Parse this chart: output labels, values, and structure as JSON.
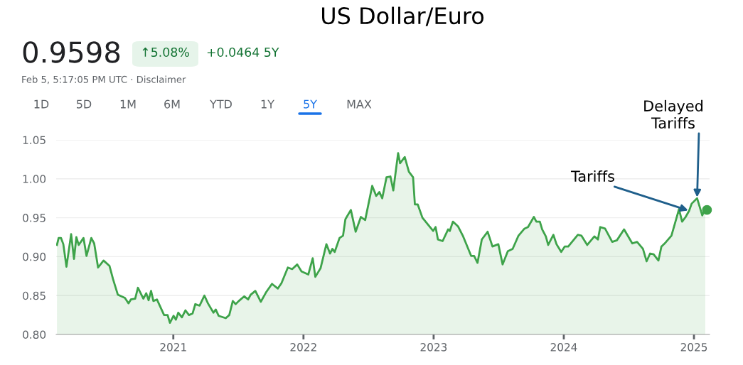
{
  "chart_data": {
    "type": "area",
    "title": "US Dollar/Euro",
    "annotations": [
      "0.9598",
      "↑5.08%",
      "+0.0464 5Y",
      "Feb 5, 5:17:05 PM UTC · Disclaimer",
      "1D",
      "5D",
      "1M",
      "6M",
      "YTD",
      "1Y",
      "5Y",
      "MAX",
      {
        "text": "Tariffs",
        "x": 2024.963,
        "y": 0.959
      },
      {
        "text": "Delayed\nTariffs",
        "x": 2025.024,
        "y": 0.975
      }
    ],
    "series": [
      {
        "color": "#3ea34a",
        "x": [
          2020.106,
          2020.119,
          2020.137,
          2020.155,
          2020.179,
          2020.215,
          2020.237,
          2020.255,
          2020.273,
          2020.31,
          2020.333,
          2020.37,
          2020.392,
          2020.422,
          2020.464,
          2020.51,
          2020.537,
          2020.574,
          2020.601,
          2020.628,
          2020.656,
          2020.674,
          2020.707,
          2020.728,
          2020.77,
          2020.792,
          2020.81,
          2020.829,
          2020.847,
          2020.874,
          2020.929,
          2020.956,
          2020.974,
          2021.002,
          2021.02,
          2021.038,
          2021.066,
          2021.093,
          2021.12,
          2021.148,
          2021.169,
          2021.202,
          2021.239,
          2021.266,
          2021.308,
          2021.326,
          2021.348,
          2021.403,
          2021.43,
          2021.457,
          2021.479,
          2021.503,
          2021.545,
          2021.575,
          2021.594,
          2021.63,
          2021.672,
          2021.712,
          2021.758,
          2021.803,
          2021.831,
          2021.88,
          2021.913,
          2021.952,
          2021.985,
          2022.037,
          2022.071,
          2022.091,
          2022.131,
          2022.176,
          2022.204,
          2022.222,
          2022.24,
          2022.277,
          2022.304,
          2022.322,
          2022.364,
          2022.401,
          2022.441,
          2022.474,
          2022.528,
          2022.559,
          2022.583,
          2022.605,
          2022.638,
          2022.668,
          2022.69,
          2022.727,
          2022.742,
          2022.778,
          2022.81,
          2022.842,
          2022.856,
          2022.878,
          2022.914,
          2022.996,
          2023.015,
          2023.033,
          2023.069,
          2023.111,
          2023.124,
          2023.148,
          2023.187,
          2023.224,
          2023.288,
          2023.311,
          2023.337,
          2023.37,
          2023.415,
          2023.452,
          2023.497,
          2023.53,
          2023.57,
          2023.607,
          2023.652,
          2023.698,
          2023.725,
          2023.77,
          2023.789,
          2023.816,
          2023.834,
          2023.862,
          2023.88,
          2023.92,
          2023.944,
          2023.98,
          2024.007,
          2024.034,
          2024.108,
          2024.135,
          2024.18,
          2024.235,
          2024.262,
          2024.28,
          2024.317,
          2024.372,
          2024.408,
          2024.463,
          2024.526,
          2024.563,
          2024.608,
          2024.636,
          2024.663,
          2024.69,
          2024.727,
          2024.75,
          2024.781,
          2024.827,
          2024.885,
          2024.909,
          2024.936,
          2024.963,
          2024.982,
          2025.024,
          2025.064,
          2025.087
        ],
        "values": [
          0.915,
          0.924,
          0.924,
          0.916,
          0.887,
          0.929,
          0.897,
          0.925,
          0.915,
          0.924,
          0.901,
          0.924,
          0.917,
          0.886,
          0.895,
          0.888,
          0.871,
          0.851,
          0.849,
          0.847,
          0.84,
          0.845,
          0.846,
          0.86,
          0.846,
          0.853,
          0.844,
          0.856,
          0.843,
          0.845,
          0.825,
          0.825,
          0.815,
          0.824,
          0.819,
          0.828,
          0.822,
          0.831,
          0.825,
          0.827,
          0.839,
          0.837,
          0.85,
          0.84,
          0.828,
          0.832,
          0.824,
          0.821,
          0.825,
          0.843,
          0.839,
          0.843,
          0.849,
          0.845,
          0.851,
          0.856,
          0.842,
          0.854,
          0.865,
          0.859,
          0.866,
          0.886,
          0.884,
          0.89,
          0.881,
          0.877,
          0.898,
          0.874,
          0.885,
          0.916,
          0.904,
          0.91,
          0.906,
          0.924,
          0.927,
          0.948,
          0.96,
          0.932,
          0.951,
          0.947,
          0.991,
          0.978,
          0.983,
          0.975,
          1.002,
          1.003,
          0.985,
          1.033,
          1.02,
          1.028,
          1.009,
          1.002,
          0.967,
          0.967,
          0.95,
          0.933,
          0.938,
          0.922,
          0.92,
          0.935,
          0.933,
          0.945,
          0.939,
          0.927,
          0.901,
          0.901,
          0.892,
          0.922,
          0.932,
          0.913,
          0.916,
          0.89,
          0.907,
          0.91,
          0.927,
          0.936,
          0.938,
          0.951,
          0.945,
          0.945,
          0.935,
          0.926,
          0.915,
          0.928,
          0.916,
          0.906,
          0.913,
          0.913,
          0.928,
          0.927,
          0.915,
          0.926,
          0.922,
          0.938,
          0.936,
          0.919,
          0.921,
          0.935,
          0.917,
          0.919,
          0.91,
          0.894,
          0.904,
          0.903,
          0.895,
          0.913,
          0.918,
          0.927,
          0.961,
          0.945,
          0.951,
          0.959,
          0.968,
          0.975,
          0.953,
          0.962
        ]
      },
      {
        "type": "scatter",
        "marker": "circle",
        "color": "#3ea34a",
        "x": [
          2025.1
        ],
        "values": [
          0.96
        ]
      }
    ],
    "xlim": [
      2020.1,
      2025.12
    ],
    "ylim": [
      0.8,
      1.05
    ],
    "xticks": [
      2021,
      2022,
      2023,
      2024,
      2025
    ],
    "yticks": [
      {
        "value": 0.8,
        "label": "0.80"
      },
      {
        "value": 0.85,
        "label": "0.85"
      },
      {
        "value": 0.9,
        "label": "0.90"
      },
      {
        "value": 0.95,
        "label": "0.95"
      },
      {
        "value": 1.0,
        "label": "1.00"
      },
      {
        "value": 1.05,
        "label": "1.05"
      }
    ],
    "grid": "y",
    "legend": false,
    "line_style": "solid"
  }
}
